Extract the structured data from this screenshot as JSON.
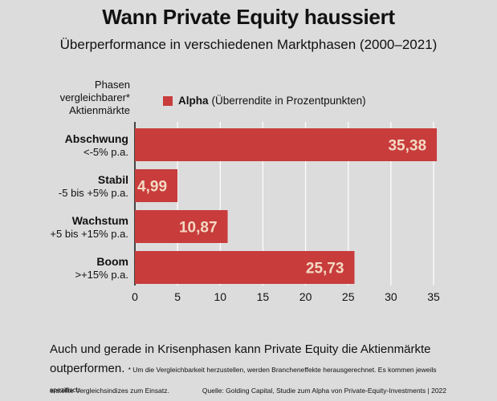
{
  "chart_data": {
    "type": "bar",
    "orientation": "horizontal",
    "title": "Wann Private Equity haussiert",
    "subtitle": "Überperformance in verschiedenen Marktphasen (2000–2021)",
    "category_header": [
      "Phasen",
      "vergleichbarer*",
      "Aktienmärkte"
    ],
    "categories": [
      {
        "name": "Abschwung",
        "range": "<-5% p.a."
      },
      {
        "name": "Stabil",
        "range": "-5 bis +5% p.a."
      },
      {
        "name": "Wachstum",
        "range": "+5 bis +15% p.a."
      },
      {
        "name": "Boom",
        "range": ">+15% p.a."
      }
    ],
    "series": [
      {
        "name": "Alpha",
        "values": [
          35.38,
          4.99,
          10.87,
          25.73
        ],
        "value_labels": [
          "35,38",
          "4,99",
          "10,87",
          "25,73"
        ]
      }
    ],
    "legend": {
      "name": "Alpha",
      "description": "(Überrendite in Prozentpunkten)",
      "placement": "top"
    },
    "xlim": [
      0,
      35
    ],
    "xticks": [
      0,
      5,
      10,
      15,
      20,
      25,
      30,
      35
    ],
    "grid": true,
    "colors": {
      "bar": "#c83c3c",
      "label": "#f3d9c3",
      "grid": "#ffffff",
      "background": "#dcdcdc"
    }
  },
  "footer": {
    "main_text": "Auch und gerade in Krisenphasen kann Private Equity die Aktienmärkte outperformen.",
    "note": "* Um die Vergleichbarkeit herzustellen, werden Brancheneffekte herausgerechnet. Es kommen jeweils spezifisch",
    "note2": "erstellte Vergleichsindizes zum Einsatz.",
    "source": "Quelle: Golding Capital, Studie zum Alpha von Private-Equity-Investments | 2022"
  }
}
